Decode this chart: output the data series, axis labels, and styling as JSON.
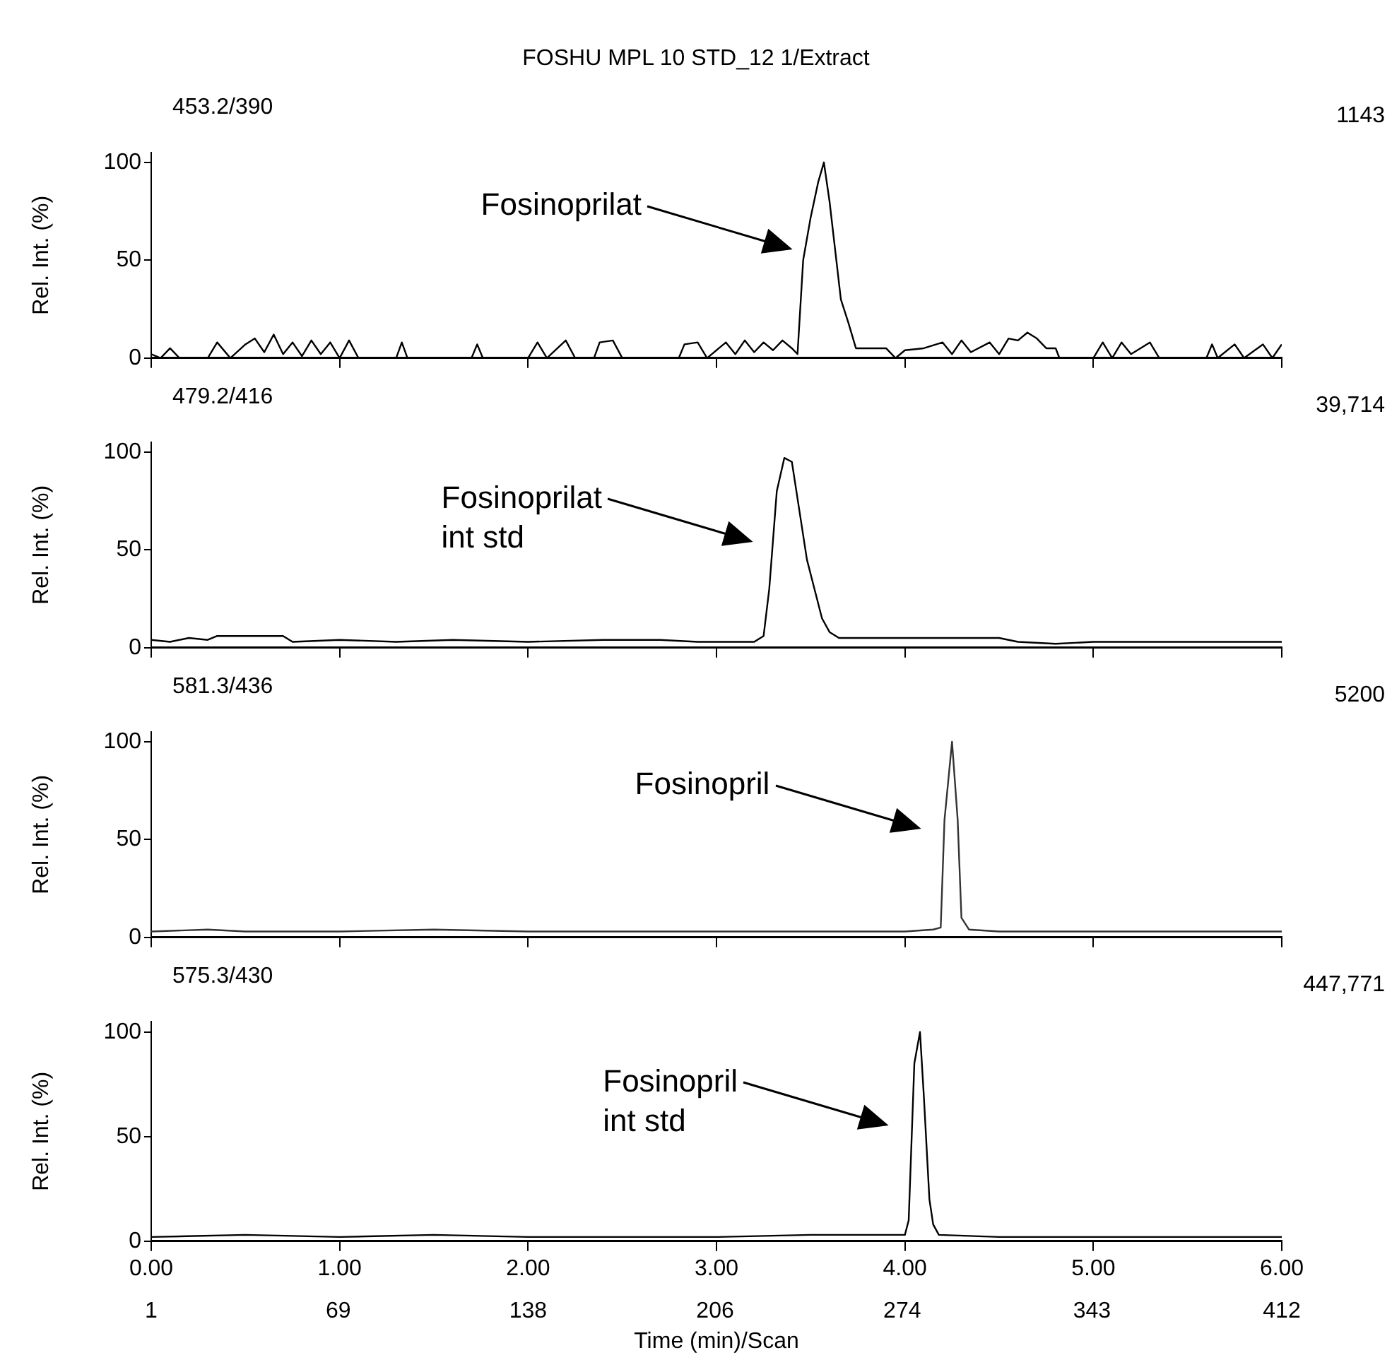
{
  "chart_data": [
    {
      "type": "line",
      "title": "FOSHU MPL 10 STD_12 1/Extract",
      "ylabel": "Rel. Int. (%)",
      "annotations": [
        "453.2/390",
        "1143",
        "Fosinoprilat"
      ],
      "x": [
        0,
        0.05,
        0.1,
        0.15,
        0.3,
        0.35,
        0.42,
        0.5,
        0.55,
        0.6,
        0.65,
        0.7,
        0.75,
        0.8,
        0.85,
        0.9,
        0.95,
        1.0,
        1.05,
        1.1,
        1.3,
        1.33,
        1.36,
        1.7,
        1.73,
        1.76,
        2.0,
        2.05,
        2.1,
        2.2,
        2.25,
        2.35,
        2.38,
        2.45,
        2.5,
        2.8,
        2.83,
        2.9,
        2.95,
        3.05,
        3.1,
        3.15,
        3.2,
        3.25,
        3.3,
        3.35,
        3.4,
        3.43,
        3.46,
        3.5,
        3.54,
        3.57,
        3.6,
        3.63,
        3.66,
        3.7,
        3.74,
        3.8,
        3.9,
        3.95,
        4.0,
        4.1,
        4.2,
        4.25,
        4.3,
        4.35,
        4.45,
        4.5,
        4.55,
        4.6,
        4.65,
        4.7,
        4.75,
        4.8,
        4.82,
        5.0,
        5.05,
        5.1,
        5.15,
        5.2,
        5.3,
        5.35,
        5.6,
        5.63,
        5.66,
        5.75,
        5.8,
        5.9,
        5.95,
        6.0
      ],
      "series": [
        {
          "color": "#000000",
          "values": [
            2,
            0,
            5,
            0,
            0,
            8,
            0,
            7,
            10,
            3,
            12,
            2,
            8,
            1,
            9,
            2,
            8,
            0,
            9,
            0,
            0,
            8,
            0,
            0,
            7,
            0,
            0,
            8,
            0,
            9,
            0,
            0,
            8,
            9,
            0,
            0,
            7,
            8,
            0,
            8,
            2,
            9,
            3,
            8,
            4,
            9,
            5,
            2,
            50,
            72,
            90,
            100,
            80,
            55,
            30,
            18,
            5,
            5,
            5,
            0,
            4,
            5,
            8,
            2,
            9,
            3,
            8,
            2,
            10,
            9,
            13,
            10,
            5,
            5,
            0,
            0,
            8,
            0,
            8,
            2,
            8,
            0,
            0,
            7,
            0,
            7,
            0,
            7,
            0,
            7
          ]
        }
      ],
      "xlim": [
        0,
        6
      ],
      "xticks": [
        0,
        1,
        2,
        3,
        4,
        5,
        6
      ],
      "ylim": [
        0,
        105
      ],
      "yticks": [
        0,
        50,
        100
      ],
      "grid": false,
      "legend": false,
      "tick_labels": "y"
    },
    {
      "type": "line",
      "ylabel": "Rel. Int. (%)",
      "annotations": [
        "479.2/416",
        "39,714",
        "Fosinoprilat\nint std"
      ],
      "x": [
        0,
        0.1,
        0.2,
        0.3,
        0.35,
        0.7,
        0.75,
        1.0,
        1.3,
        1.6,
        2.0,
        2.4,
        2.7,
        2.9,
        3.0,
        3.2,
        3.25,
        3.28,
        3.32,
        3.36,
        3.4,
        3.44,
        3.48,
        3.52,
        3.56,
        3.6,
        3.65,
        4.0,
        4.5,
        4.6,
        4.8,
        5.0,
        5.5,
        6.0
      ],
      "series": [
        {
          "color": "#000000",
          "values": [
            4,
            3,
            5,
            4,
            6,
            6,
            3,
            4,
            3,
            4,
            3,
            4,
            4,
            3,
            3,
            3,
            6,
            30,
            80,
            97,
            95,
            70,
            45,
            30,
            15,
            8,
            5,
            5,
            5,
            3,
            2,
            3,
            3,
            3
          ]
        }
      ],
      "xlim": [
        0,
        6
      ],
      "xticks": [
        0,
        1,
        2,
        3,
        4,
        5,
        6
      ],
      "ylim": [
        0,
        105
      ],
      "yticks": [
        0,
        50,
        100
      ],
      "grid": false,
      "legend": false,
      "tick_labels": "y"
    },
    {
      "type": "line",
      "ylabel": "Rel. Int. (%)",
      "annotations": [
        "581.3/436",
        "5200",
        "Fosinopril"
      ],
      "x": [
        0,
        0.3,
        0.5,
        1.0,
        1.5,
        2.0,
        2.5,
        3.0,
        3.5,
        4.0,
        4.15,
        4.19,
        4.21,
        4.25,
        4.28,
        4.3,
        4.34,
        4.5,
        5.0,
        5.5,
        6.0
      ],
      "series": [
        {
          "color": "#333333",
          "values": [
            3,
            4,
            3,
            3,
            4,
            3,
            3,
            3,
            3,
            3,
            4,
            5,
            60,
            100,
            60,
            10,
            4,
            3,
            3,
            3,
            3
          ]
        }
      ],
      "xlim": [
        0,
        6
      ],
      "xticks": [
        0,
        1,
        2,
        3,
        4,
        5,
        6
      ],
      "ylim": [
        0,
        105
      ],
      "yticks": [
        0,
        50,
        100
      ],
      "grid": false,
      "legend": false,
      "tick_labels": "y"
    },
    {
      "type": "line",
      "ylabel": "Rel. Int. (%)",
      "xlabel": "Time (min)/Scan",
      "annotations": [
        "575.3/430",
        "447,771",
        "Fosinopril\nint std"
      ],
      "x": [
        0,
        0.5,
        1.0,
        1.5,
        2.0,
        2.5,
        3.0,
        3.5,
        3.9,
        4.0,
        4.02,
        4.05,
        4.08,
        4.1,
        4.13,
        4.15,
        4.18,
        4.5,
        5.0,
        5.5,
        6.0
      ],
      "series": [
        {
          "color": "#000000",
          "values": [
            2,
            3,
            2,
            3,
            2,
            2,
            2,
            3,
            3,
            3,
            10,
            85,
            100,
            70,
            20,
            8,
            3,
            2,
            2,
            2,
            2
          ]
        }
      ],
      "xlim": [
        0,
        6
      ],
      "xticks": [
        {
          "value": 0,
          "label": "0.00"
        },
        {
          "value": 1,
          "label": "1.00"
        },
        {
          "value": 2,
          "label": "2.00"
        },
        {
          "value": 3,
          "label": "3.00"
        },
        {
          "value": 4,
          "label": "4.00"
        },
        {
          "value": 5,
          "label": "5.00"
        },
        {
          "value": 6,
          "label": "6.00"
        }
      ],
      "x2lim": [
        1,
        412
      ],
      "x2ticks": [
        1,
        69,
        138,
        206,
        274,
        343,
        412
      ],
      "ylim": [
        0,
        105
      ],
      "yticks": [
        0,
        50,
        100
      ],
      "grid": false,
      "legend": false
    }
  ]
}
